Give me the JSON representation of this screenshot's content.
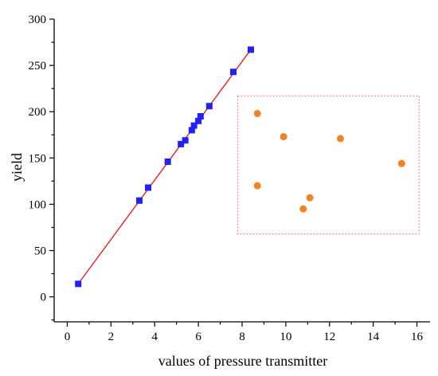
{
  "chart_data": {
    "type": "scatter",
    "xlabel": "values of pressure transmitter",
    "ylabel": "yield",
    "xlim": [
      -0.6,
      16.6
    ],
    "ylim": [
      -27,
      300
    ],
    "x_ticks": [
      0,
      2,
      4,
      6,
      8,
      10,
      12,
      14,
      16
    ],
    "y_ticks": [
      0,
      50,
      100,
      150,
      200,
      250,
      300
    ],
    "grid": false,
    "series": [
      {
        "marker": "square",
        "color": "#1f1fff",
        "x": [
          0.5,
          3.3,
          3.7,
          4.6,
          5.2,
          5.4,
          5.7,
          5.8,
          6.0,
          6.1,
          6.5,
          7.6,
          8.4
        ],
        "y": [
          14,
          104,
          118,
          146,
          165,
          169,
          180,
          185,
          190,
          195,
          206,
          243,
          267
        ]
      },
      {
        "marker": "circle",
        "color": "#f58220",
        "x": [
          8.7,
          8.7,
          9.9,
          10.8,
          11.1,
          12.5,
          15.3
        ],
        "y": [
          198,
          120,
          173,
          95,
          107,
          171,
          144
        ]
      }
    ],
    "fit_line": {
      "color": "#e8201b",
      "x": [
        0.5,
        8.4
      ],
      "y": [
        14,
        267
      ]
    },
    "annotation_box": {
      "style": "dotted",
      "color": "#f07070",
      "x_range": [
        7.8,
        16.1
      ],
      "y_range": [
        68,
        217
      ]
    }
  }
}
